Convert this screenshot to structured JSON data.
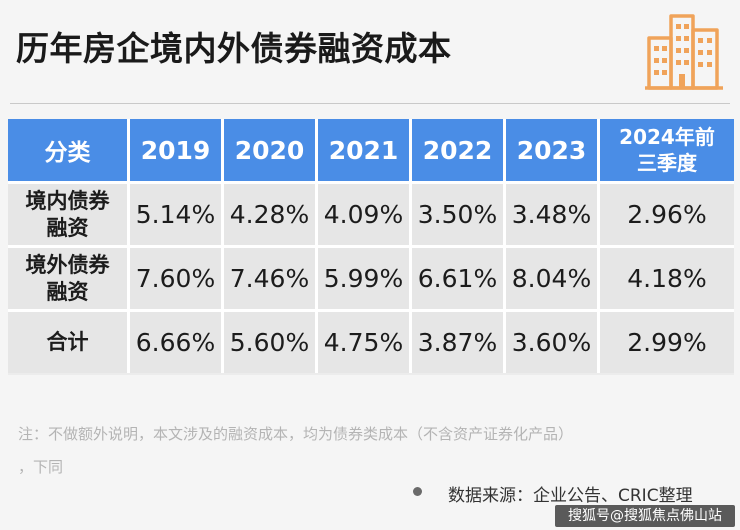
{
  "title": "历年房企境内外债券融资成本",
  "colors": {
    "header_blue": "#4a8de6",
    "row_bg": "#e6e6e6",
    "icon_orange": "#f0a35a"
  },
  "table": {
    "headers": [
      "分类",
      "2019",
      "2020",
      "2021",
      "2022",
      "2023",
      "2024年前\n三季度"
    ],
    "rows": [
      {
        "label": "境内债券\n融资",
        "values": [
          "5.14%",
          "4.28%",
          "4.09%",
          "3.50%",
          "3.48%",
          "2.96%"
        ]
      },
      {
        "label": "境外债券\n融资",
        "values": [
          "7.60%",
          "7.46%",
          "5.99%",
          "6.61%",
          "8.04%",
          "4.18%"
        ]
      },
      {
        "label": "合计",
        "values": [
          "6.66%",
          "5.60%",
          "4.75%",
          "3.87%",
          "3.60%",
          "2.99%"
        ]
      }
    ]
  },
  "note_line1": "注：不做额外说明，本文涉及的融资成本，均为债券类成本（不含资产证券化产品）",
  "note_line2": "，下同",
  "source": "数据来源：企业公告、CRIC整理",
  "watermark_badge": "搜狐号@搜狐焦点佛山站",
  "icons": {
    "title_icon": "buildings-icon",
    "source_bullet": "bullet-dot-icon"
  }
}
